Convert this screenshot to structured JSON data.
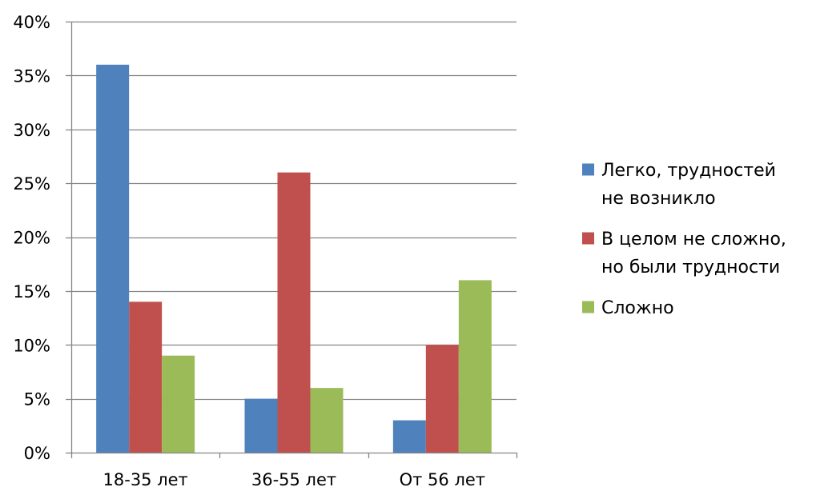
{
  "chart_data": {
    "type": "bar",
    "title": "",
    "xlabel": "",
    "ylabel": "",
    "categories": [
      "18-35 лет",
      "36-55 лет",
      "От 56 лет"
    ],
    "series": [
      {
        "name": "Легко, трудностей не возникло",
        "legend_lines": [
          "Легко, трудностей",
          "не возникло"
        ],
        "color": "#4F81BD",
        "values": [
          36,
          5,
          3
        ]
      },
      {
        "name": "В целом не сложно, но были трудности",
        "legend_lines": [
          "В целом не сложно,",
          "но были трудности"
        ],
        "color": "#C0504D",
        "values": [
          14,
          26,
          10
        ]
      },
      {
        "name": "Сложно",
        "legend_lines": [
          "Сложно"
        ],
        "color": "#9BBB59",
        "values": [
          9,
          6,
          16
        ]
      }
    ],
    "ylim": [
      0,
      40
    ],
    "yticks": [
      0,
      5,
      10,
      15,
      20,
      25,
      30,
      35,
      40
    ],
    "ytick_labels": [
      "0%",
      "5%",
      "10%",
      "15%",
      "20%",
      "25%",
      "30%",
      "35%",
      "40%"
    ],
    "grid": true,
    "legend_position": "right"
  }
}
